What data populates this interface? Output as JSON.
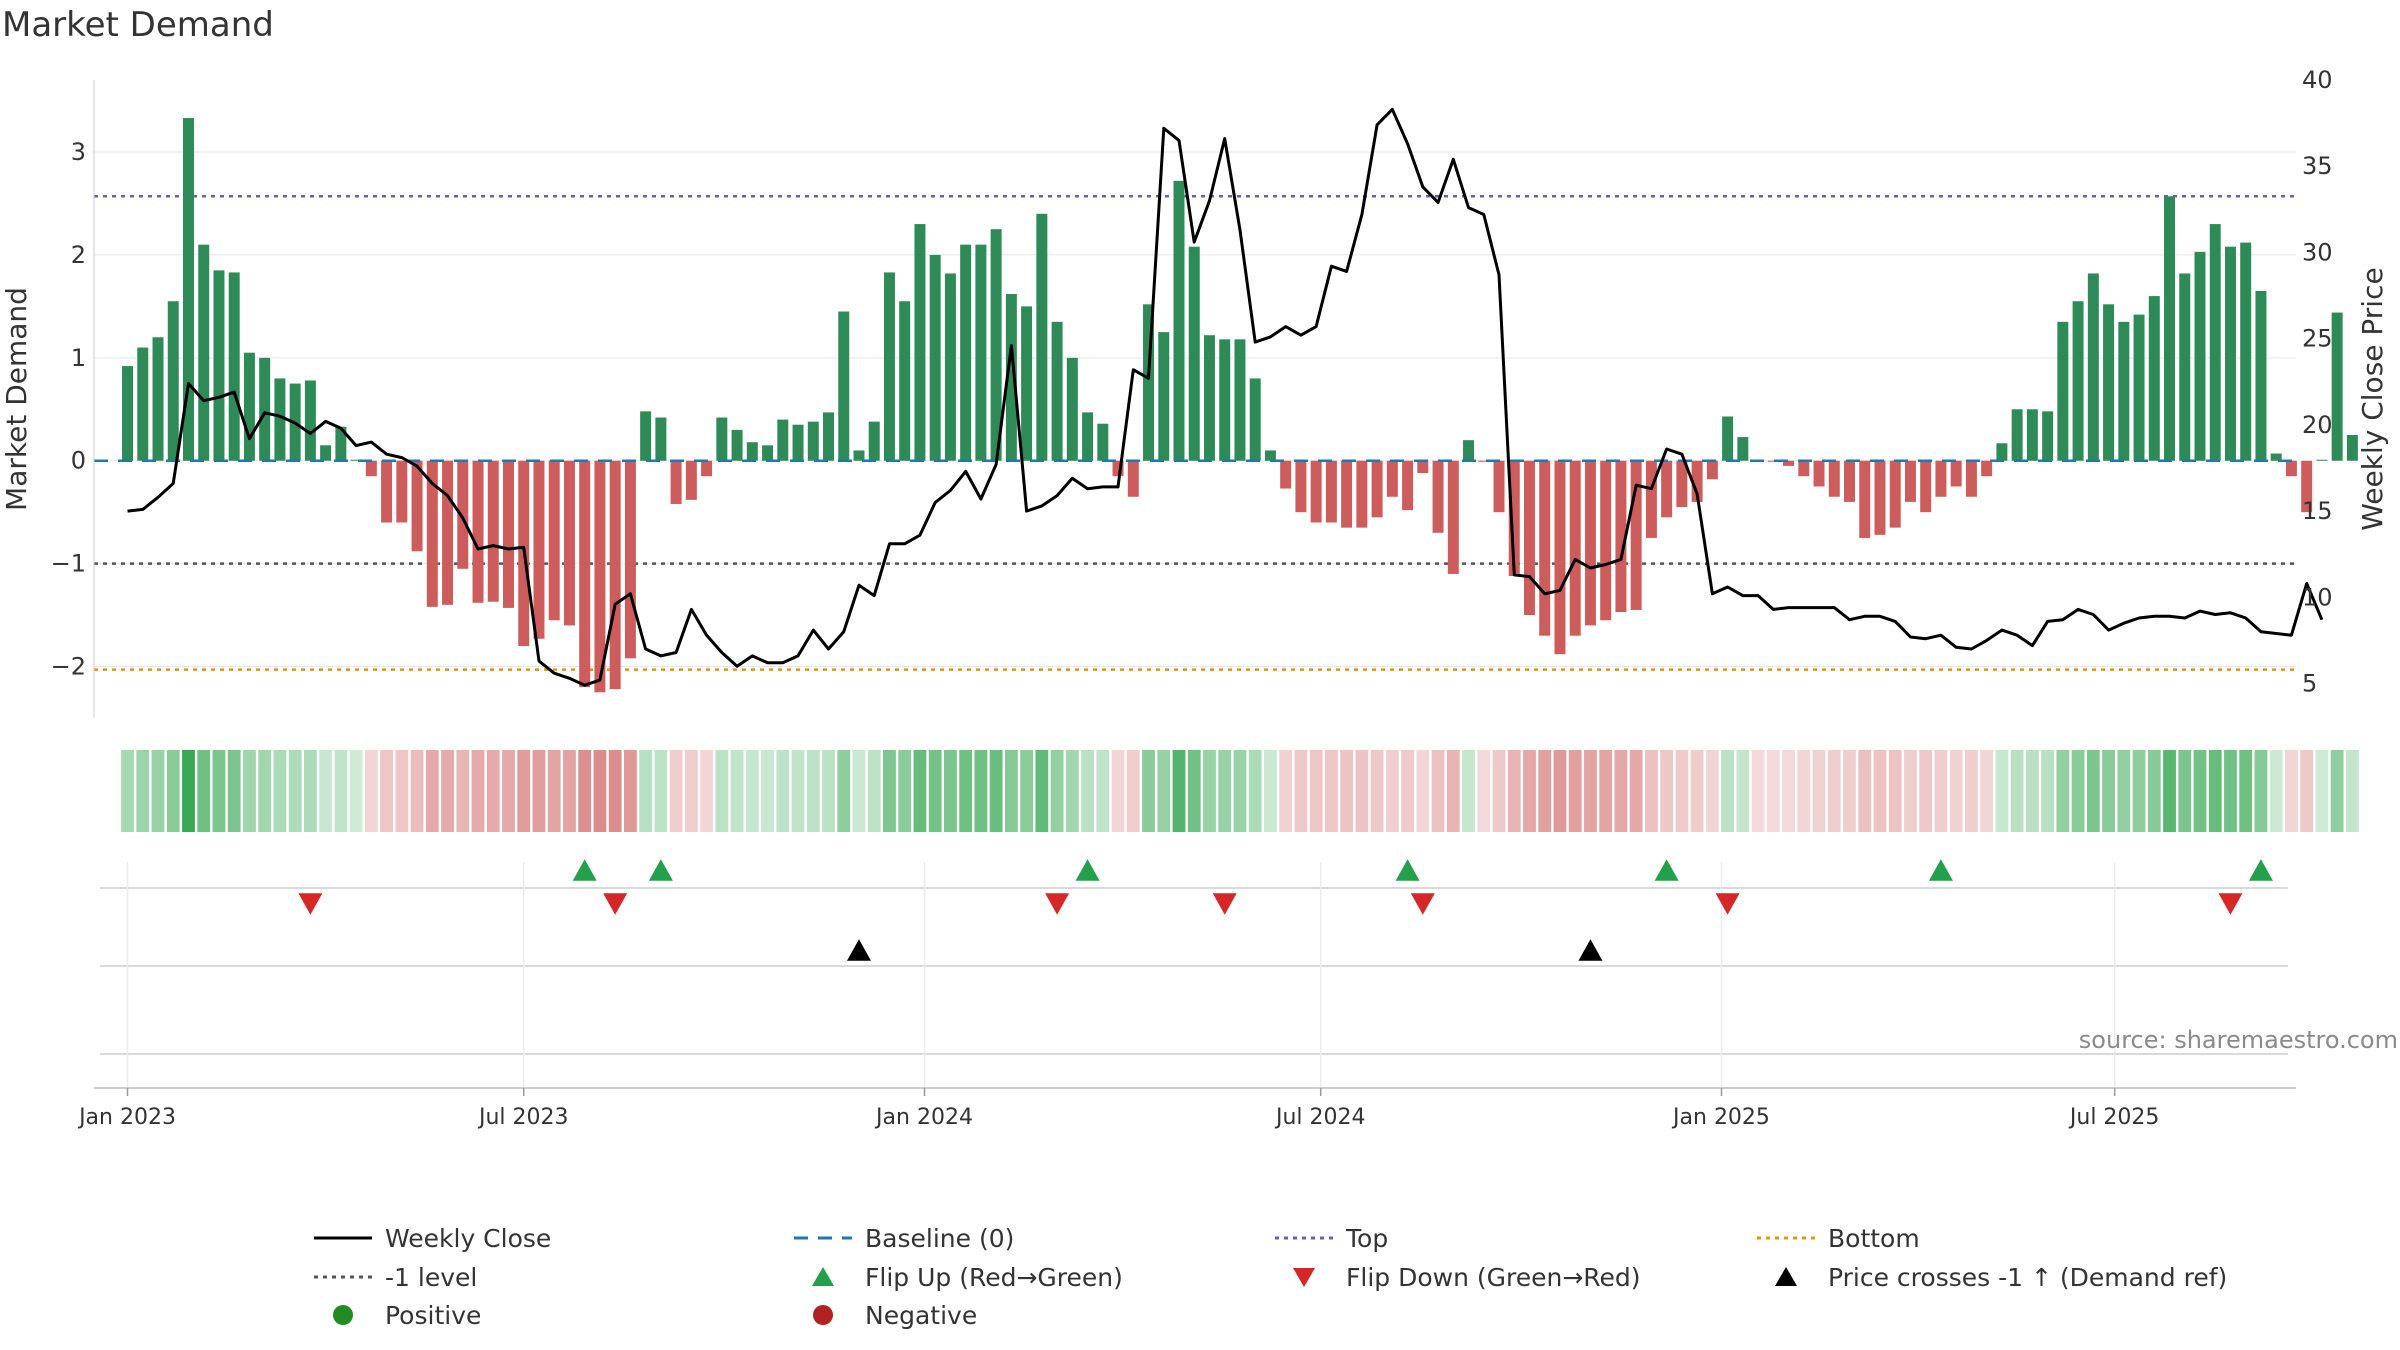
{
  "title": "Market Demand",
  "source": "source: sharemaestro.com",
  "colors": {
    "positive_bar": "#2e8b57",
    "negative_bar": "#cd5c5c",
    "close_line": "#000000",
    "baseline": "#1f77b4",
    "top_line": "#6a5acd",
    "bottom_line": "#e69500",
    "minus1_line": "#555555",
    "flip_up": "#22a04b",
    "flip_down": "#d62728",
    "cross": "#000000",
    "positive_dot": "#228b22",
    "negative_dot": "#b22222",
    "grid": "#e5e5e5"
  },
  "chart_data": {
    "type": "bar+line",
    "title": "Market Demand",
    "ylabel_left": "Market Demand",
    "ylabel_right": "Weekly Close Price",
    "ylim_left": [
      -2.5,
      3.7
    ],
    "ylim_right": [
      3,
      40
    ],
    "left_ticks": [
      {
        "v": 3,
        "label": "3"
      },
      {
        "v": 2,
        "label": "2"
      },
      {
        "v": 1,
        "label": "1"
      },
      {
        "v": 0,
        "label": "0"
      },
      {
        "v": -1,
        "label": "−1"
      },
      {
        "v": -2,
        "label": "−2"
      }
    ],
    "right_ticks": [
      40,
      35,
      30,
      25,
      20,
      15,
      10,
      5
    ],
    "x_ticks": [
      {
        "label": "Jan 2023",
        "week": 0
      },
      {
        "label": "Jul 2023",
        "week": 26
      },
      {
        "label": "Jan 2024",
        "week": 52.3
      },
      {
        "label": "Jul 2024",
        "week": 78.3
      },
      {
        "label": "Jan 2025",
        "week": 104.6
      },
      {
        "label": "Jul 2025",
        "week": 130.4
      }
    ],
    "week_range": [
      -2.2,
      142.3
    ],
    "reference_levels": {
      "top": 2.57,
      "bottom": -2.03,
      "minus1": -1.0,
      "baseline": 0
    },
    "demand": [
      0.92,
      1.1,
      1.2,
      1.55,
      3.33,
      2.1,
      1.85,
      1.83,
      1.05,
      1.0,
      0.8,
      0.75,
      0.78,
      0.15,
      0.33,
      0.01,
      -0.15,
      -0.6,
      -0.6,
      -0.88,
      -1.42,
      -1.4,
      -1.05,
      -1.38,
      -1.37,
      -1.43,
      -1.8,
      -1.73,
      -1.55,
      -1.6,
      -2.2,
      -2.25,
      -2.22,
      -1.92,
      0.48,
      0.42,
      -0.42,
      -0.38,
      -0.15,
      0.42,
      0.3,
      0.18,
      0.15,
      0.4,
      0.35,
      0.38,
      0.47,
      1.45,
      0.1,
      0.38,
      1.83,
      1.55,
      2.3,
      2.0,
      1.82,
      2.1,
      2.1,
      2.25,
      1.62,
      1.5,
      2.4,
      1.35,
      1.0,
      0.47,
      0.36,
      -0.15,
      -0.35,
      1.52,
      1.25,
      2.72,
      2.08,
      1.22,
      1.18,
      1.18,
      0.8,
      0.1,
      -0.27,
      -0.5,
      -0.6,
      -0.6,
      -0.65,
      -0.65,
      -0.55,
      -0.35,
      -0.48,
      -0.12,
      -0.7,
      -1.1,
      0.2,
      -0.01,
      -0.5,
      -1.12,
      -1.5,
      -1.7,
      -1.88,
      -1.7,
      -1.6,
      -1.55,
      -1.47,
      -1.45,
      -0.75,
      -0.55,
      -0.45,
      -0.4,
      -0.18,
      0.43,
      0.23,
      -0.01,
      -0.01,
      -0.05,
      -0.15,
      -0.25,
      -0.35,
      -0.4,
      -0.75,
      -0.72,
      -0.65,
      -0.4,
      -0.5,
      -0.35,
      -0.25,
      -0.35,
      -0.15,
      0.17,
      0.5,
      0.5,
      0.48,
      1.35,
      1.55,
      1.82,
      1.52,
      1.35,
      1.42,
      1.6,
      2.57,
      1.82,
      2.03,
      2.3,
      2.08,
      2.12,
      1.65,
      0.07,
      -0.15,
      -0.5,
      0.01,
      1.44,
      0.25
    ],
    "close": [
      15,
      15.1,
      15.8,
      16.6,
      22.4,
      21.4,
      21.6,
      21.9,
      19.2,
      20.7,
      20.5,
      20.1,
      19.5,
      20.2,
      19.8,
      18.8,
      19.0,
      18.3,
      18.1,
      17.6,
      16.6,
      15.9,
      14.6,
      12.8,
      13.0,
      12.8,
      12.9,
      6.3,
      5.6,
      5.3,
      4.9,
      5.2,
      9.6,
      10.2,
      7.0,
      6.6,
      6.8,
      9.3,
      7.8,
      6.8,
      6.0,
      6.6,
      6.2,
      6.2,
      6.6,
      8.1,
      7.0,
      8.0,
      10.7,
      10.1,
      13.1,
      13.1,
      13.6,
      15.5,
      16.2,
      17.3,
      15.7,
      17.7,
      24.6,
      15.0,
      15.3,
      15.9,
      16.9,
      16.3,
      16.4,
      16.4,
      23.2,
      22.7,
      37.2,
      36.5,
      30.6,
      33.0,
      36.6,
      31.3,
      24.8,
      25.1,
      25.7,
      25.2,
      25.7,
      29.2,
      28.9,
      32.2,
      37.4,
      38.3,
      36.3,
      33.8,
      32.9,
      35.4,
      32.6,
      32.2,
      28.7,
      11.3,
      11.2,
      10.2,
      10.4,
      12.2,
      11.7,
      11.9,
      12.2,
      16.5,
      16.3,
      18.6,
      18.3,
      16.0,
      10.2,
      10.6,
      10.1,
      10.1,
      9.3,
      9.4,
      9.4,
      9.4,
      9.4,
      8.7,
      8.9,
      8.9,
      8.6,
      7.7,
      7.6,
      7.8,
      7.1,
      7.0,
      7.5,
      8.1,
      7.8,
      7.2,
      8.6,
      8.7,
      9.3,
      9.0,
      8.1,
      8.5,
      8.8,
      8.9,
      8.9,
      8.8,
      9.2,
      9.0,
      9.1,
      8.8,
      8.0,
      7.9,
      7.8,
      10.8,
      8.7
    ],
    "flip_up_weeks": [
      30,
      35,
      63,
      84,
      101,
      119,
      140
    ],
    "flip_down_weeks": [
      12,
      32,
      61,
      72,
      85,
      105,
      138
    ],
    "price_cross_weeks": [
      48,
      96
    ]
  },
  "legend": {
    "weekly_close": "Weekly Close",
    "baseline": "Baseline (0)",
    "top": "Top",
    "bottom": "Bottom",
    "minus1": "-1 level",
    "flip_up": "Flip Up (Red→Green)",
    "flip_down": "Flip Down (Green→Red)",
    "price_cross": "Price crosses -1 ↑ (Demand ref)",
    "positive": "Positive",
    "negative": "Negative"
  }
}
